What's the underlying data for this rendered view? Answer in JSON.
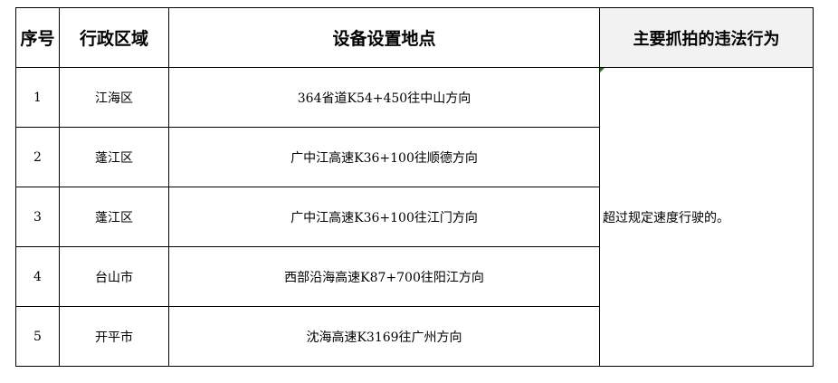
{
  "table": {
    "headers": [
      "序号",
      "行政区域",
      "设备设置地点",
      "主要抓拍的违法行为"
    ],
    "rows": [
      {
        "no": "1",
        "district": "江海区",
        "location": "364省道K54+450往中山方向"
      },
      {
        "no": "2",
        "district": "蓬江区",
        "location": "广中江高速K36+100往顺德方向"
      },
      {
        "no": "3",
        "district": "蓬江区",
        "location": "广中江高速K36+100往江门方向"
      },
      {
        "no": "4",
        "district": "台山市",
        "location": "西部沿海高速K87+700往阳江方向"
      },
      {
        "no": "5",
        "district": "开平市",
        "location": "沈海高速K3169往广州方向"
      }
    ],
    "behavior": "超过规定速度行驶的。",
    "header_highlight_color": "#f2f2f2"
  }
}
